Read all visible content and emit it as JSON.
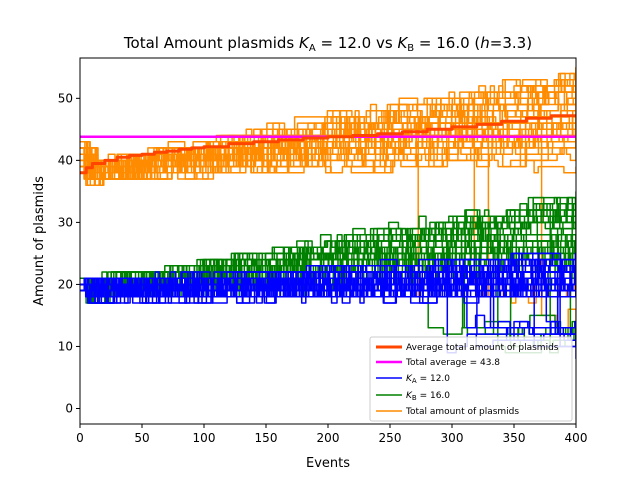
{
  "chart_data": {
    "type": "line",
    "title_parts": {
      "prefix": "Total Amount plasmids ",
      "ka_symbol": "K",
      "ka_sub": "A",
      "ka_value": " = 12.0 vs ",
      "kb_symbol": "K",
      "kb_sub": "B",
      "kb_value": " = 16.0 (",
      "h_symbol": "h",
      "h_value": "=3.3)"
    },
    "xlabel": "Events",
    "ylabel": "Amount of plasmids",
    "xlim": [
      0,
      400
    ],
    "ylim": [
      -2.5,
      56.5
    ],
    "xticks": [
      0,
      50,
      100,
      150,
      200,
      250,
      300,
      350,
      400
    ],
    "yticks": [
      0,
      10,
      20,
      30,
      40,
      50
    ],
    "grid": false,
    "legend_position": "lower-right",
    "colors": {
      "average": "#ff4500",
      "total_average": "#ff00ff",
      "ka": "#0000ff",
      "kb": "#008000",
      "total": "#ff8c00"
    },
    "legend": [
      {
        "key": "average",
        "label": "Average total amount of plasmids",
        "linewidth": 3
      },
      {
        "key": "total_average",
        "label": "Total average = 43.8",
        "linewidth": 2.5
      },
      {
        "key": "ka",
        "label_symbol": "K",
        "label_sub": "A",
        "label_value": " = 12.0",
        "linewidth": 1.5
      },
      {
        "key": "kb",
        "label_symbol": "K",
        "label_sub": "B",
        "label_value": " = 16.0",
        "linewidth": 1.5
      },
      {
        "key": "total",
        "label": "Total amount of plasmids",
        "linewidth": 1.5
      }
    ],
    "total_average_value": 43.8,
    "series_counts": {
      "total": 40,
      "kb": 40,
      "ka": 40
    },
    "average_series": {
      "x": [
        0,
        5,
        10,
        20,
        30,
        40,
        50,
        60,
        70,
        80,
        90,
        100,
        120,
        140,
        160,
        180,
        200,
        220,
        240,
        260,
        280,
        300,
        320,
        340,
        360,
        380,
        400
      ],
      "y": [
        38.0,
        38.8,
        39.5,
        40.0,
        40.5,
        40.8,
        41.0,
        41.3,
        41.5,
        41.8,
        42.0,
        42.2,
        42.7,
        43.0,
        43.3,
        43.6,
        43.8,
        44.0,
        44.3,
        44.6,
        45.0,
        45.4,
        45.8,
        46.3,
        46.8,
        47.2,
        47.3
      ]
    },
    "total_range": {
      "start": [
        38,
        43
      ],
      "end": [
        41,
        54
      ],
      "drops_to": [
        12,
        40
      ]
    },
    "kb_range": {
      "start": [
        19,
        21
      ],
      "end": [
        22,
        34
      ],
      "drops_to": [
        9,
        15
      ]
    },
    "ka_range": {
      "start": [
        19,
        20
      ],
      "end": [
        19,
        24
      ],
      "drops_to": [
        9,
        15
      ]
    }
  }
}
